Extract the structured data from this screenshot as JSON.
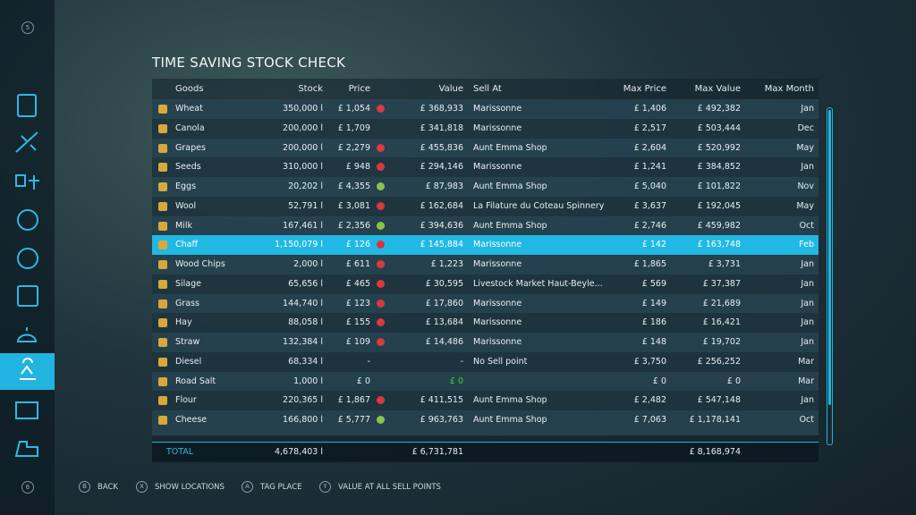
{
  "title": "TIME SAVING STOCK CHECK",
  "nav_prev": "5",
  "nav_next": "6",
  "table": {
    "headers": {
      "goods": "Goods",
      "stock": "Stock",
      "price": "Price",
      "value": "Value",
      "sell_at": "Sell At",
      "max_price": "Max Price",
      "max_value": "Max Value",
      "max_month": "Max Month"
    },
    "selected_row": 7,
    "rows": [
      {
        "goods": "Wheat",
        "stock": "350,000 l",
        "price": "£ 1,054",
        "trend": "down",
        "value": "£ 368,933",
        "sell_at": "Marissonne",
        "max_price": "£ 1,406",
        "max_value": "£ 492,382",
        "max_month": "Jan"
      },
      {
        "goods": "Canola",
        "stock": "200,000 l",
        "price": "£ 1,709",
        "trend": null,
        "value": "£ 341,818",
        "sell_at": "Marissonne",
        "max_price": "£ 2,517",
        "max_value": "£ 503,444",
        "max_month": "Dec"
      },
      {
        "goods": "Grapes",
        "stock": "200,000 l",
        "price": "£ 2,279",
        "trend": "down",
        "value": "£ 455,836",
        "sell_at": "Aunt Emma Shop",
        "max_price": "£ 2,604",
        "max_value": "£ 520,992",
        "max_month": "May"
      },
      {
        "goods": "Seeds",
        "stock": "310,000 l",
        "price": "£ 948",
        "trend": "down",
        "value": "£ 294,146",
        "sell_at": "Marissonne",
        "max_price": "£ 1,241",
        "max_value": "£ 384,852",
        "max_month": "Jan"
      },
      {
        "goods": "Eggs",
        "stock": "20,202 l",
        "price": "£ 4,355",
        "trend": "up",
        "value": "£ 87,983",
        "sell_at": "Aunt Emma Shop",
        "max_price": "£ 5,040",
        "max_value": "£ 101,822",
        "max_month": "Nov"
      },
      {
        "goods": "Wool",
        "stock": "52,791 l",
        "price": "£ 3,081",
        "trend": "down",
        "value": "£ 162,684",
        "sell_at": "La Filature du Coteau Spinnery",
        "max_price": "£ 3,637",
        "max_value": "£ 192,045",
        "max_month": "May"
      },
      {
        "goods": "Milk",
        "stock": "167,461 l",
        "price": "£ 2,356",
        "trend": "up",
        "value": "£ 394,636",
        "sell_at": "Aunt Emma Shop",
        "max_price": "£ 2,746",
        "max_value": "£ 459,982",
        "max_month": "Oct"
      },
      {
        "goods": "Chaff",
        "stock": "1,150,079 l",
        "price": "£ 126",
        "trend": "down",
        "value": "£ 145,884",
        "sell_at": "Marissonne",
        "max_price": "£ 142",
        "max_value": "£ 163,748",
        "max_month": "Feb"
      },
      {
        "goods": "Wood Chips",
        "stock": "2,000 l",
        "price": "£ 611",
        "trend": "down",
        "value": "£ 1,223",
        "sell_at": "Marissonne",
        "max_price": "£ 1,865",
        "max_value": "£ 3,731",
        "max_month": "Jan"
      },
      {
        "goods": "Silage",
        "stock": "65,656 l",
        "price": "£ 465",
        "trend": "down",
        "value": "£ 30,595",
        "sell_at": "Livestock Market Haut-Beyle...",
        "max_price": "£ 569",
        "max_value": "£ 37,387",
        "max_month": "Jan"
      },
      {
        "goods": "Grass",
        "stock": "144,740 l",
        "price": "£ 123",
        "trend": "down",
        "value": "£ 17,860",
        "sell_at": "Marissonne",
        "max_price": "£ 149",
        "max_value": "£ 21,689",
        "max_month": "Jan"
      },
      {
        "goods": "Hay",
        "stock": "88,058 l",
        "price": "£ 155",
        "trend": "down",
        "value": "£ 13,684",
        "sell_at": "Marissonne",
        "max_price": "£ 186",
        "max_value": "£ 16,421",
        "max_month": "Jan"
      },
      {
        "goods": "Straw",
        "stock": "132,384 l",
        "price": "£ 109",
        "trend": "down",
        "value": "£ 14,486",
        "sell_at": "Marissonne",
        "max_price": "£ 148",
        "max_value": "£ 19,702",
        "max_month": "Jan"
      },
      {
        "goods": "Diesel",
        "stock": "68,334 l",
        "price": "-",
        "trend": null,
        "value": "-",
        "sell_at": "No Sell point",
        "max_price": "£ 3,750",
        "max_value": "£ 256,252",
        "max_month": "Mar"
      },
      {
        "goods": "Road Salt",
        "stock": "1,000 l",
        "price": "£ 0",
        "trend": null,
        "value": "£ 0",
        "value_color": "#3fd13f",
        "sell_at": null,
        "max_price": "£ 0",
        "max_value": "£ 0",
        "max_month": "Mar"
      },
      {
        "goods": "Flour",
        "stock": "220,365 l",
        "price": "£ 1,867",
        "trend": "down",
        "value": "£ 411,515",
        "sell_at": "Aunt Emma Shop",
        "max_price": "£ 2,482",
        "max_value": "£ 547,148",
        "max_month": "Jan"
      },
      {
        "goods": "Cheese",
        "stock": "166,800 l",
        "price": "£ 5,777",
        "trend": "up",
        "value": "£ 963,763",
        "sell_at": "Aunt Emma Shop",
        "max_price": "£ 7,063",
        "max_value": "£ 1,178,141",
        "max_month": "Oct"
      }
    ],
    "total": {
      "label": "TOTAL",
      "stock": "4,678,403 l",
      "value": "£ 6,731,781",
      "max_value": "£ 8,168,974"
    }
  },
  "buttons": [
    {
      "key": "B",
      "label": "BACK"
    },
    {
      "key": "X",
      "label": "SHOW LOCATIONS"
    },
    {
      "key": "A",
      "label": "TAG PLACE"
    },
    {
      "key": "Y",
      "label": "VALUE AT ALL SELL POINTS"
    }
  ]
}
